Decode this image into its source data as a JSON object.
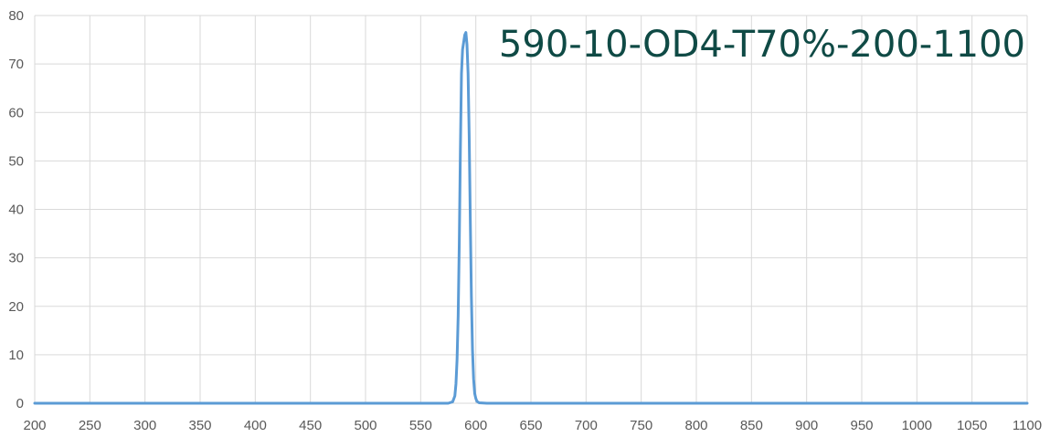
{
  "chart_data": {
    "type": "line",
    "title": "590-10-OD4-T70%-200-1100",
    "xlabel": "",
    "ylabel": "",
    "xlim": [
      200,
      1100
    ],
    "ylim": [
      0,
      80
    ],
    "x_ticks": [
      "200",
      "250",
      "300",
      "350",
      "400",
      "450",
      "500",
      "550",
      "600",
      "650",
      "700",
      "750",
      "800",
      "850",
      "900",
      "950",
      "1000",
      "1050",
      "1100"
    ],
    "y_ticks": [
      "0",
      "10",
      "20",
      "30",
      "40",
      "50",
      "60",
      "70",
      "80"
    ],
    "grid": true,
    "legend": "none",
    "colors": {
      "series": "#5b9bd5",
      "title": "#0f4a45",
      "grid": "#d9d9d9",
      "ticks": "#595959"
    },
    "series": [
      {
        "x": [
          200,
          575,
          579,
          581,
          582,
          583,
          584,
          585,
          586,
          587,
          588,
          589,
          590,
          591,
          592,
          593,
          594,
          595,
          596,
          597,
          598,
          599,
          600,
          601,
          603,
          610,
          1100
        ],
        "y": [
          0,
          0,
          0.3,
          1.5,
          4,
          9,
          18,
          33,
          52,
          68,
          73,
          74.5,
          76,
          76.5,
          74,
          68,
          55,
          38,
          22,
          11,
          5,
          2,
          1,
          0.4,
          0.1,
          0,
          0
        ]
      }
    ]
  }
}
